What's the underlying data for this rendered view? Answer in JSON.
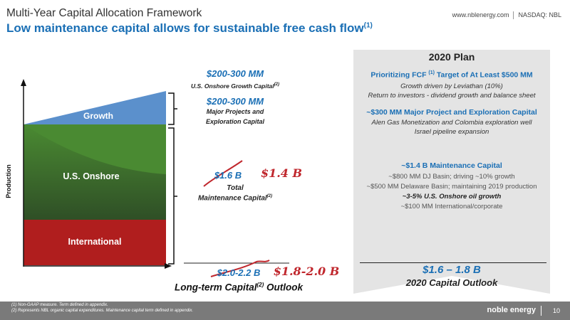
{
  "header": {
    "title": "Multi-Year Capital Allocation Framework",
    "subtitle": "Low maintenance capital allows for sustainable free cash flow",
    "subtitle_sup": "(1)",
    "website": "www.nblenergy.com",
    "ticker": "NASDAQ: NBL"
  },
  "diagram": {
    "y_axis_label": "Production",
    "segments": {
      "growth": "Growth",
      "us_onshore": "U.S. Onshore",
      "international": "International"
    },
    "colors": {
      "growth": "#5b90cc",
      "us_onshore_light": "#4a7f30",
      "us_onshore_dark": "#33552a",
      "international": "#b01e1e"
    },
    "growth_amount": "$200-300 MM",
    "growth_label": "U.S. Onshore Growth Capital",
    "growth_label_sup": "(2)",
    "major_amount": "$200-300 MM",
    "major_label_line1": "Major Projects and",
    "major_label_line2": "Exploration Capital",
    "maintenance_original": "$1.6 B",
    "maintenance_revised": "$1.4 B",
    "maintenance_label_line1": "Total",
    "maintenance_label_line2": "Maintenance Capital",
    "maintenance_label_sup": "(2)",
    "total_original": "$2.0-2.2 B",
    "total_revised": "$1.8-2.0 B",
    "outlook_label": "Long-term Capital",
    "outlook_sup": "(2)",
    "outlook_suffix": " Outlook"
  },
  "plan": {
    "title": "2020 Plan",
    "fcf_heading_pre": "Prioritizing FCF ",
    "fcf_heading_sup": "(1)",
    "fcf_heading_post": " Target of At Least $500 MM",
    "fcf_line1": "Growth driven by Leviathan (10%)",
    "fcf_line2": "Return to investors - dividend growth and balance sheet",
    "major_heading": "~$300 MM Major Project and Exploration Capital",
    "major_line1": "Alen Gas Monetization and Colombia exploration well",
    "major_line2": "Israel pipeline expansion",
    "maint_heading": "~$1.4 B Maintenance Capital",
    "maint_line1": "~$800 MM DJ Basin; driving ~10% growth",
    "maint_line2": "~$500 MM Delaware Basin; maintaining 2019 production",
    "maint_line3": "~3-5% U.S. Onshore oil growth",
    "maint_line4": "~$100 MM International/corporate",
    "range": "$1.6 – 1.8 B",
    "outlook": "2020 Capital Outlook"
  },
  "footer": {
    "note1": "(1)    Non-GAAP measure.  Term defined in appendix.",
    "note2": "(2)    Represents NBL organic capital expenditures. Maintenance capital term defined in appendix.",
    "logo": "noble energy",
    "page": "10"
  }
}
